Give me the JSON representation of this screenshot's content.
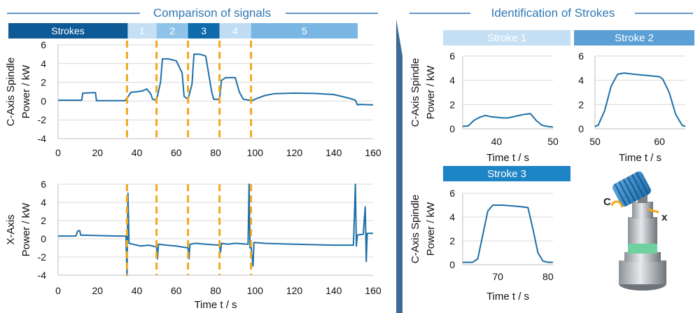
{
  "panel_titles": {
    "left": "Comparison of signals",
    "right": "Identification of Strokes"
  },
  "stroke_bar": {
    "label": "Strokes",
    "segments": [
      {
        "label": "1",
        "start": 35,
        "end": 50,
        "color": "#c5e0f4"
      },
      {
        "label": "2",
        "start": 50,
        "end": 66,
        "color": "#8fc3ea"
      },
      {
        "label": "3",
        "start": 66,
        "end": 82,
        "color": "#0e6aab"
      },
      {
        "label": "4",
        "start": 82,
        "end": 98,
        "color": "#bfdcf2"
      },
      {
        "label": "5",
        "start": 98,
        "end": 160,
        "color": "#7ab6e4"
      }
    ],
    "label_color": "#0e5a96"
  },
  "colors": {
    "line": "#1f6fa8",
    "title": "#2f77b3",
    "divider": "#3d6b94",
    "marker": "#f2a81d",
    "grid": "#d9d9d9"
  },
  "chart_data": [
    {
      "id": "c_axis",
      "type": "line",
      "title": "",
      "xlabel": "",
      "ylabel_lines": [
        "C-Axis Spindle",
        "Power / kW"
      ],
      "xlim": [
        0,
        160
      ],
      "ylim": [
        -4,
        6
      ],
      "xticks": [
        0,
        20,
        40,
        60,
        80,
        100,
        120,
        140,
        160
      ],
      "yticks": [
        -4,
        -2,
        0,
        2,
        4,
        6
      ],
      "series": [
        {
          "name": "C-Axis Spindle Power",
          "points": [
            [
              0,
              0.1
            ],
            [
              12,
              0.1
            ],
            [
              12.5,
              0.85
            ],
            [
              19,
              0.9
            ],
            [
              19.5,
              0.05
            ],
            [
              34,
              0.05
            ],
            [
              35,
              0.3
            ],
            [
              37,
              0.95
            ],
            [
              40,
              1.0
            ],
            [
              43,
              1.1
            ],
            [
              45,
              1.3
            ],
            [
              47,
              0.8
            ],
            [
              48,
              0.2
            ],
            [
              50,
              0.1
            ],
            [
              52,
              2.0
            ],
            [
              53,
              4.5
            ],
            [
              56,
              4.5
            ],
            [
              60,
              4.3
            ],
            [
              63,
              3.0
            ],
            [
              64,
              0.5
            ],
            [
              66,
              0.2
            ],
            [
              68,
              1.8
            ],
            [
              69,
              5.0
            ],
            [
              72,
              5.0
            ],
            [
              75,
              4.8
            ],
            [
              78,
              1.0
            ],
            [
              79,
              0.2
            ],
            [
              82,
              0.2
            ],
            [
              83,
              2.2
            ],
            [
              85,
              2.5
            ],
            [
              90,
              2.5
            ],
            [
              92,
              1.0
            ],
            [
              94,
              0.2
            ],
            [
              97,
              0.1
            ],
            [
              98,
              0.0
            ],
            [
              100,
              0.2
            ],
            [
              105,
              0.6
            ],
            [
              110,
              0.8
            ],
            [
              120,
              0.85
            ],
            [
              130,
              0.82
            ],
            [
              140,
              0.7
            ],
            [
              148,
              0.3
            ],
            [
              151,
              0.1
            ],
            [
              152,
              -0.4
            ],
            [
              153,
              -0.35
            ],
            [
              160,
              -0.4
            ]
          ]
        }
      ],
      "markers_x": [
        35,
        50,
        66,
        82,
        98
      ]
    },
    {
      "id": "x_axis",
      "type": "line",
      "title": "",
      "xlabel": "Time t / s",
      "ylabel_lines": [
        "X-Axis",
        "Power / kW"
      ],
      "xlim": [
        0,
        160
      ],
      "ylim": [
        -4,
        6
      ],
      "xticks": [
        0,
        20,
        40,
        60,
        80,
        100,
        120,
        140,
        160
      ],
      "yticks": [
        -4,
        -2,
        0,
        2,
        4,
        6
      ],
      "series": [
        {
          "name": "X-Axis Power",
          "points": [
            [
              0,
              0.3
            ],
            [
              9,
              0.3
            ],
            [
              10,
              0.85
            ],
            [
              11,
              0.9
            ],
            [
              11.5,
              0.4
            ],
            [
              20,
              0.35
            ],
            [
              30,
              0.3
            ],
            [
              34.5,
              0.3
            ],
            [
              35,
              -4
            ],
            [
              35.5,
              5
            ],
            [
              36,
              -0.5
            ],
            [
              38,
              -0.6
            ],
            [
              42,
              -0.8
            ],
            [
              46,
              -0.7
            ],
            [
              50,
              -0.9
            ],
            [
              50.5,
              -2.2
            ],
            [
              51,
              -0.6
            ],
            [
              55,
              -0.7
            ],
            [
              60,
              -0.8
            ],
            [
              66,
              -1.0
            ],
            [
              66.5,
              -2.2
            ],
            [
              67,
              -0.6
            ],
            [
              70,
              -0.5
            ],
            [
              75,
              -0.6
            ],
            [
              82,
              -0.7
            ],
            [
              82.5,
              -1.5
            ],
            [
              83,
              -0.5
            ],
            [
              86,
              -0.6
            ],
            [
              90,
              -0.5
            ],
            [
              96.5,
              -0.6
            ],
            [
              97,
              6.0
            ],
            [
              97.5,
              -1.0
            ],
            [
              98,
              -0.8
            ],
            [
              99,
              -3.0
            ],
            [
              99.5,
              -0.4
            ],
            [
              105,
              -0.5
            ],
            [
              120,
              -0.6
            ],
            [
              140,
              -0.7
            ],
            [
              150,
              -0.7
            ],
            [
              151,
              6
            ],
            [
              151.5,
              -0.8
            ],
            [
              152,
              0.4
            ],
            [
              155,
              0.5
            ],
            [
              156,
              3.5
            ],
            [
              156.5,
              -2.5
            ],
            [
              157,
              0.6
            ],
            [
              160,
              0.6
            ]
          ]
        }
      ],
      "markers_x": [
        35,
        50,
        66,
        82,
        98
      ]
    },
    {
      "id": "stroke1",
      "type": "line",
      "title": "Stroke 1",
      "title_bg": "#c5e0f4",
      "xlabel": "Time t / s",
      "ylabel_lines": [
        "C-Axis Spindle",
        "Power / kW"
      ],
      "xlim": [
        34,
        50
      ],
      "ylim": [
        0,
        6
      ],
      "xticks": [
        40,
        45,
        50
      ],
      "xtick_labels": [
        "40",
        "",
        "50"
      ],
      "yticks": [
        0,
        2,
        4,
        6
      ],
      "series": [
        {
          "name": "Stroke 1",
          "points": [
            [
              34,
              0.2
            ],
            [
              35,
              0.25
            ],
            [
              36,
              0.7
            ],
            [
              37,
              0.95
            ],
            [
              38,
              1.1
            ],
            [
              39,
              1.0
            ],
            [
              40,
              0.95
            ],
            [
              41,
              0.9
            ],
            [
              42,
              0.9
            ],
            [
              43,
              1.0
            ],
            [
              44,
              1.1
            ],
            [
              45,
              1.2
            ],
            [
              46,
              1.25
            ],
            [
              47,
              0.7
            ],
            [
              48,
              0.3
            ],
            [
              49,
              0.2
            ],
            [
              50,
              0.15
            ]
          ]
        }
      ]
    },
    {
      "id": "stroke2",
      "type": "line",
      "title": "Stroke 2",
      "title_bg": "#5a9fd6",
      "xlabel": "Time t / s",
      "xlim": [
        50,
        64
      ],
      "ylim": [
        0,
        6
      ],
      "xticks": [
        50,
        55,
        60
      ],
      "xtick_labels": [
        "50",
        "",
        "60"
      ],
      "yticks": [
        0,
        2,
        4,
        6
      ],
      "series": [
        {
          "name": "Stroke 2",
          "points": [
            [
              50,
              0.2
            ],
            [
              50.5,
              0.3
            ],
            [
              51.5,
              1.5
            ],
            [
              52.5,
              3.5
            ],
            [
              53.5,
              4.5
            ],
            [
              54.5,
              4.6
            ],
            [
              56,
              4.5
            ],
            [
              58,
              4.4
            ],
            [
              60,
              4.3
            ],
            [
              60.5,
              4.1
            ],
            [
              61.5,
              3.0
            ],
            [
              62.5,
              1.2
            ],
            [
              63.5,
              0.3
            ],
            [
              64,
              0.2
            ]
          ]
        }
      ]
    },
    {
      "id": "stroke3",
      "type": "line",
      "title": "Stroke 3",
      "title_bg": "#1d84c6",
      "xlabel": "Time t / s",
      "ylabel_lines": [
        "C-Axis Spindle",
        "Power / kW"
      ],
      "xlim": [
        63,
        81
      ],
      "ylim": [
        0,
        6
      ],
      "xticks": [
        70,
        75,
        80
      ],
      "xtick_labels": [
        "70",
        "",
        "80"
      ],
      "yticks": [
        0,
        2,
        4,
        6
      ],
      "series": [
        {
          "name": "Stroke 3",
          "points": [
            [
              63,
              0.2
            ],
            [
              65,
              0.2
            ],
            [
              66,
              0.5
            ],
            [
              67,
              2.5
            ],
            [
              68,
              4.5
            ],
            [
              69,
              5.0
            ],
            [
              71,
              5.0
            ],
            [
              74,
              4.9
            ],
            [
              76,
              4.8
            ],
            [
              77,
              3.0
            ],
            [
              78,
              1.0
            ],
            [
              79,
              0.3
            ],
            [
              80,
              0.2
            ],
            [
              81,
              0.2
            ]
          ]
        }
      ]
    }
  ],
  "illustration": {
    "c_label": "C",
    "x_label": "x"
  }
}
